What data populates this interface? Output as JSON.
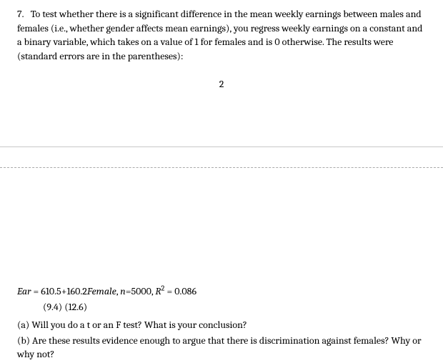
{
  "question": {
    "number": "7.",
    "intro": "To test whether there is a significant difference in the mean weekly earnings between males and females (i.e., whether gender affects mean earnings), you regress weekly earnings on a constant and a binary variable, which takes on a value of 1 for females and is 0 otherwise. The results were (standard errors are in the parentheses):"
  },
  "page_number": "2",
  "regression": {
    "dep_var": "Ear",
    "equals": " = ",
    "intercept": "610.5",
    "plus": "+",
    "slope": "160.2",
    "indep_var": "Female",
    "comma_sp": ",   ",
    "n_label": "n",
    "n_value": "=5000, ",
    "r2_label": "R",
    "r2_sup": "2",
    "r2_value": " = 0.086",
    "se": "(9.4)   (12.6)"
  },
  "parts": {
    "a": "(a) Will you do a t or an F test? What is your conclusion?",
    "b": "(b) Are these results evidence enough to argue that there is discrimination against females? Why or why not?"
  },
  "style": {
    "font_family": "Cambria, Georgia, serif",
    "font_size_pt": 14,
    "text_color": "#000000",
    "background_color": "#ffffff",
    "divider_solid_color": "#c8c8c8",
    "divider_dashed_color": "#aaaaaa"
  }
}
